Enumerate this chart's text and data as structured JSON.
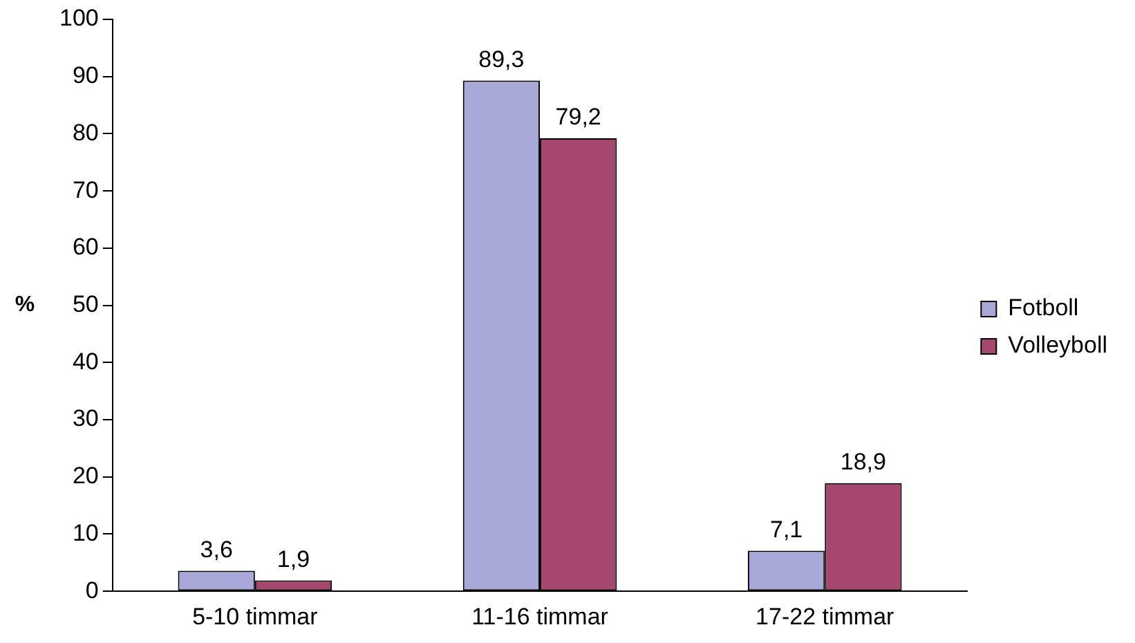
{
  "chart_data": {
    "type": "bar",
    "ylabel": "%",
    "categories": [
      "5-10 timmar",
      "11-16 timmar",
      "17-22 timmar"
    ],
    "series": [
      {
        "name": "Fotboll",
        "color": "#a9a9d9",
        "values": [
          3.6,
          89.3,
          7.1
        ],
        "value_labels": [
          "3,6",
          "89,3",
          "7,1"
        ]
      },
      {
        "name": "Volleyboll",
        "color": "#a5476f",
        "values": [
          1.9,
          79.2,
          18.9
        ],
        "value_labels": [
          "1,9",
          "79,2",
          "18,9"
        ]
      }
    ],
    "ylim": [
      0,
      100
    ],
    "yticks": [
      0,
      10,
      20,
      30,
      40,
      50,
      60,
      70,
      80,
      90,
      100
    ],
    "grid": false,
    "legend": "right"
  }
}
